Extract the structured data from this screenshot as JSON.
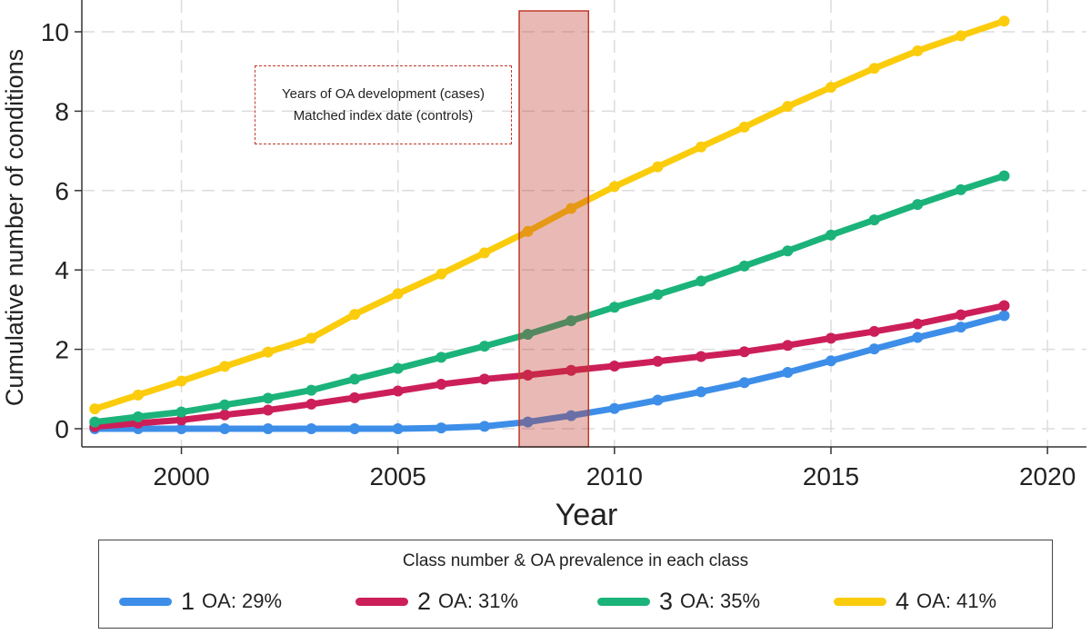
{
  "chart_data": {
    "type": "line",
    "xlabel": "Year",
    "ylabel": "Cumulative number of conditions",
    "xlim": [
      1998,
      2020
    ],
    "ylim": [
      0,
      10.5
    ],
    "xticks": [
      2000,
      2005,
      2010,
      2015,
      2020
    ],
    "yticks": [
      0,
      2,
      4,
      6,
      8,
      10
    ],
    "grid": true,
    "highlight_band": {
      "x_start": 2007.8,
      "x_end": 2009.4,
      "color": "#c0392b"
    },
    "annotation": {
      "line1": "Years of OA development (cases)",
      "line2": "Matched index date (controls)"
    },
    "x": [
      1998,
      1999,
      2000,
      2001,
      2002,
      2003,
      2004,
      2005,
      2006,
      2007,
      2008,
      2009,
      2010,
      2011,
      2012,
      2013,
      2014,
      2015,
      2016,
      2017,
      2018,
      2019
    ],
    "series": [
      {
        "name": "1 OA: 29%",
        "class": "1",
        "label": "OA: 29%",
        "color": "#3d8ee8",
        "values": [
          0.0,
          0.0,
          0.0,
          0.0,
          0.0,
          0.0,
          0.0,
          0.0,
          0.02,
          0.06,
          0.17,
          0.33,
          0.51,
          0.72,
          0.93,
          1.16,
          1.42,
          1.71,
          2.01,
          2.3,
          2.56,
          2.85
        ]
      },
      {
        "name": "2 OA: 31%",
        "class": "2",
        "label": "OA: 31%",
        "color": "#cc1f5a",
        "values": [
          0.05,
          0.14,
          0.22,
          0.35,
          0.47,
          0.62,
          0.78,
          0.95,
          1.12,
          1.25,
          1.35,
          1.47,
          1.58,
          1.7,
          1.82,
          1.94,
          2.1,
          2.28,
          2.45,
          2.64,
          2.87,
          3.1
        ]
      },
      {
        "name": "3 OA: 35%",
        "class": "3",
        "label": "OA: 35%",
        "color": "#1bb37a",
        "values": [
          0.17,
          0.3,
          0.42,
          0.6,
          0.77,
          0.97,
          1.25,
          1.52,
          1.8,
          2.08,
          2.38,
          2.72,
          3.06,
          3.38,
          3.72,
          4.1,
          4.48,
          4.88,
          5.26,
          5.65,
          6.02,
          6.37
        ]
      },
      {
        "name": "4 OA: 41%",
        "class": "4",
        "label": "OA: 41%",
        "color": "#fbcc0c",
        "values": [
          0.5,
          0.85,
          1.2,
          1.57,
          1.93,
          2.28,
          2.88,
          3.4,
          3.9,
          4.43,
          4.97,
          5.55,
          6.1,
          6.6,
          7.1,
          7.6,
          8.12,
          8.6,
          9.08,
          9.52,
          9.9,
          10.27
        ]
      }
    ],
    "legend_title": "Class number & OA prevalence in each class"
  }
}
